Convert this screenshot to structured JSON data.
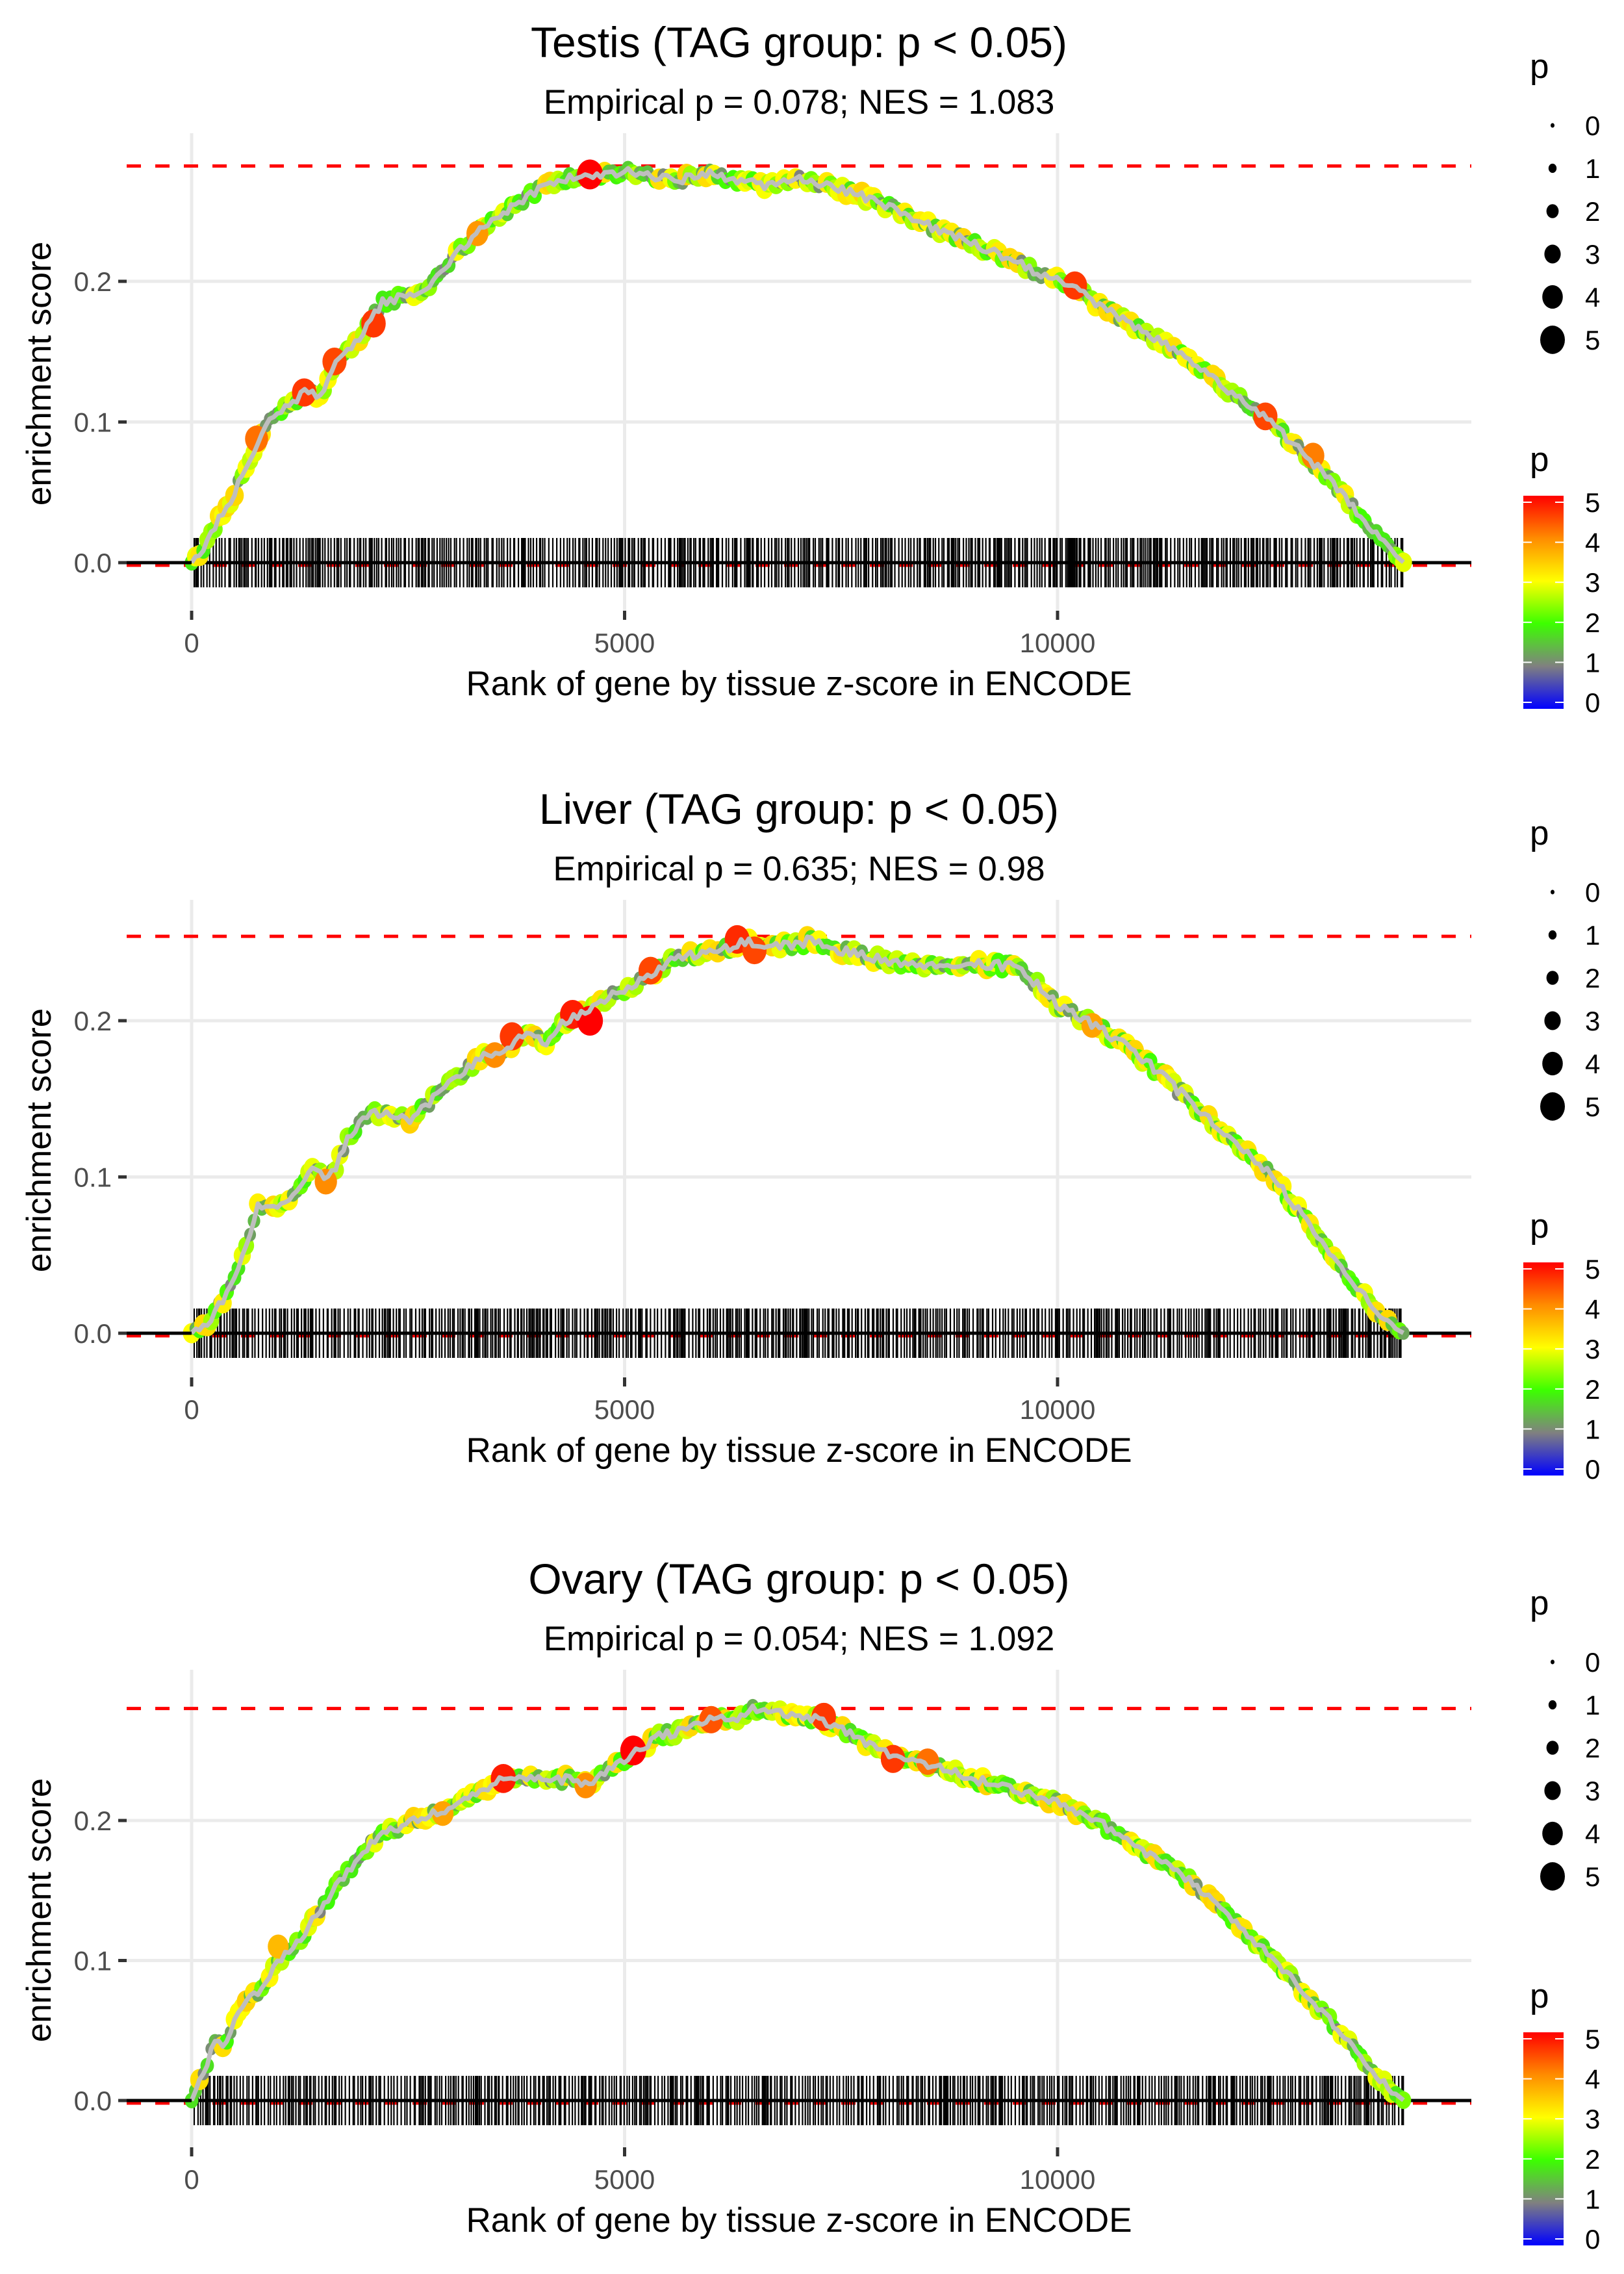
{
  "figure": {
    "panels_count": 3,
    "background": "#ffffff"
  },
  "chart_data": [
    {
      "type": "line",
      "panel": "testis",
      "title": "Testis (TAG group: p < 0.05)",
      "subtitle": "Empirical p = 0.078; NES = 1.083",
      "xlabel": "Rank of gene by tissue z-score in ENCODE",
      "ylabel": "enrichment score",
      "x_ticks": [
        0,
        5000,
        10000
      ],
      "x_tick_labels": [
        "0",
        "5000",
        "10000"
      ],
      "y_ticks": [
        0.0,
        0.1,
        0.2
      ],
      "y_tick_labels": [
        "0.0",
        "0.1",
        "0.2"
      ],
      "xlim": [
        -1500,
        14800
      ],
      "ylim": [
        -0.02,
        0.3
      ],
      "max_es": 0.282,
      "n_genes": 14000,
      "grid": true,
      "curve": [
        [
          0,
          0
        ],
        [
          150,
          0.01
        ],
        [
          300,
          0.03
        ],
        [
          500,
          0.05
        ],
        [
          750,
          0.085
        ],
        [
          900,
          0.1
        ],
        [
          1200,
          0.115
        ],
        [
          1300,
          0.122
        ],
        [
          1500,
          0.118
        ],
        [
          1650,
          0.14
        ],
        [
          2000,
          0.165
        ],
        [
          2200,
          0.185
        ],
        [
          2500,
          0.19
        ],
        [
          2700,
          0.195
        ],
        [
          3000,
          0.215
        ],
        [
          3300,
          0.235
        ],
        [
          3600,
          0.248
        ],
        [
          4000,
          0.265
        ],
        [
          4300,
          0.272
        ],
        [
          4600,
          0.276
        ],
        [
          5000,
          0.278
        ],
        [
          5300,
          0.275
        ],
        [
          5600,
          0.272
        ],
        [
          6000,
          0.276
        ],
        [
          6300,
          0.272
        ],
        [
          6600,
          0.268
        ],
        [
          7000,
          0.273
        ],
        [
          7500,
          0.265
        ],
        [
          8000,
          0.255
        ],
        [
          8500,
          0.24
        ],
        [
          9000,
          0.228
        ],
        [
          9500,
          0.214
        ],
        [
          10000,
          0.2
        ],
        [
          10200,
          0.195
        ],
        [
          10500,
          0.182
        ],
        [
          11000,
          0.165
        ],
        [
          11500,
          0.145
        ],
        [
          12000,
          0.12
        ],
        [
          12400,
          0.103
        ],
        [
          12800,
          0.08
        ],
        [
          13200,
          0.055
        ],
        [
          13600,
          0.025
        ],
        [
          13850,
          0.008
        ],
        [
          14000,
          0
        ]
      ],
      "highlight_points": [
        {
          "x": 4600,
          "es": 0.276,
          "p": 5.0
        },
        {
          "x": 10200,
          "es": 0.197,
          "p": 4.6
        },
        {
          "x": 12400,
          "es": 0.104,
          "p": 4.5
        },
        {
          "x": 12950,
          "es": 0.076,
          "p": 4.1
        },
        {
          "x": 1300,
          "es": 0.121,
          "p": 4.6
        },
        {
          "x": 1650,
          "es": 0.143,
          "p": 4.5
        },
        {
          "x": 2100,
          "es": 0.17,
          "p": 4.6
        },
        {
          "x": 750,
          "es": 0.088,
          "p": 4.2
        },
        {
          "x": 3300,
          "es": 0.234,
          "p": 3.9
        }
      ],
      "legend_size": {
        "title": "p",
        "values": [
          0,
          1,
          2,
          3,
          4,
          5
        ]
      },
      "legend_color": {
        "title": "p",
        "values": [
          5,
          4,
          3,
          2,
          1,
          0
        ],
        "colors": [
          "#ff0000",
          "#ff8c00",
          "#ffff00",
          "#3cff00",
          "#808080",
          "#0000ff"
        ]
      }
    },
    {
      "type": "line",
      "panel": "liver",
      "title": "Liver (TAG group: p < 0.05)",
      "subtitle": "Empirical p = 0.635; NES = 0.98",
      "xlabel": "Rank of gene by tissue z-score in ENCODE",
      "ylabel": "enrichment score",
      "x_ticks": [
        0,
        5000,
        10000
      ],
      "x_tick_labels": [
        "0",
        "5000",
        "10000"
      ],
      "y_ticks": [
        0.0,
        0.1,
        0.2
      ],
      "y_tick_labels": [
        "0.0",
        "0.1",
        "0.2"
      ],
      "xlim": [
        -1500,
        14800
      ],
      "ylim": [
        -0.015,
        0.27
      ],
      "max_es": 0.254,
      "n_genes": 14000,
      "grid": true,
      "curve": [
        [
          0,
          0
        ],
        [
          200,
          0.008
        ],
        [
          400,
          0.025
        ],
        [
          600,
          0.05
        ],
        [
          750,
          0.08
        ],
        [
          900,
          0.082
        ],
        [
          1000,
          0.08
        ],
        [
          1200,
          0.092
        ],
        [
          1400,
          0.105
        ],
        [
          1550,
          0.097
        ],
        [
          1700,
          0.11
        ],
        [
          1800,
          0.125
        ],
        [
          2000,
          0.14
        ],
        [
          2300,
          0.14
        ],
        [
          2500,
          0.135
        ],
        [
          2700,
          0.145
        ],
        [
          3000,
          0.162
        ],
        [
          3200,
          0.17
        ],
        [
          3400,
          0.18
        ],
        [
          3600,
          0.18
        ],
        [
          3800,
          0.19
        ],
        [
          4000,
          0.192
        ],
        [
          4100,
          0.183
        ],
        [
          4300,
          0.2
        ],
        [
          4500,
          0.205
        ],
        [
          4700,
          0.212
        ],
        [
          5000,
          0.22
        ],
        [
          5300,
          0.228
        ],
        [
          5500,
          0.238
        ],
        [
          5800,
          0.242
        ],
        [
          6100,
          0.245
        ],
        [
          6400,
          0.251
        ],
        [
          6600,
          0.246
        ],
        [
          6900,
          0.248
        ],
        [
          7200,
          0.252
        ],
        [
          7500,
          0.245
        ],
        [
          8000,
          0.238
        ],
        [
          8500,
          0.235
        ],
        [
          9000,
          0.236
        ],
        [
          9500,
          0.235
        ],
        [
          9800,
          0.222
        ],
        [
          10000,
          0.21
        ],
        [
          10500,
          0.195
        ],
        [
          11000,
          0.175
        ],
        [
          11500,
          0.15
        ],
        [
          12000,
          0.125
        ],
        [
          12500,
          0.1
        ],
        [
          12900,
          0.07
        ],
        [
          13300,
          0.04
        ],
        [
          13700,
          0.012
        ],
        [
          13900,
          0.003
        ],
        [
          14000,
          0
        ]
      ],
      "highlight_points": [
        {
          "x": 1550,
          "es": 0.097,
          "p": 4.0
        },
        {
          "x": 3500,
          "es": 0.178,
          "p": 4.0
        },
        {
          "x": 3700,
          "es": 0.19,
          "p": 4.6
        },
        {
          "x": 4400,
          "es": 0.204,
          "p": 4.8
        },
        {
          "x": 4600,
          "es": 0.2,
          "p": 5.0
        },
        {
          "x": 5300,
          "es": 0.232,
          "p": 4.5
        },
        {
          "x": 6300,
          "es": 0.252,
          "p": 4.7
        },
        {
          "x": 6500,
          "es": 0.245,
          "p": 4.5
        },
        {
          "x": 10400,
          "es": 0.197,
          "p": 3.8
        }
      ],
      "legend_size": {
        "title": "p",
        "values": [
          0,
          1,
          2,
          3,
          4,
          5
        ]
      },
      "legend_color": {
        "title": "p",
        "values": [
          5,
          4,
          3,
          2,
          1,
          0
        ],
        "colors": [
          "#ff0000",
          "#ff8c00",
          "#ffff00",
          "#3cff00",
          "#808080",
          "#0000ff"
        ]
      }
    },
    {
      "type": "line",
      "panel": "ovary",
      "title": "Ovary (TAG group: p < 0.05)",
      "subtitle": "Empirical p = 0.054; NES = 1.092",
      "xlabel": "Rank of gene by tissue z-score in ENCODE",
      "ylabel": "enrichment score",
      "x_ticks": [
        0,
        5000,
        10000
      ],
      "x_tick_labels": [
        "0",
        "5000",
        "10000"
      ],
      "y_ticks": [
        0.0,
        0.1,
        0.2
      ],
      "y_tick_labels": [
        "0.0",
        "0.1",
        "0.2"
      ],
      "xlim": [
        -1500,
        14800
      ],
      "ylim": [
        -0.02,
        0.3
      ],
      "max_es": 0.28,
      "n_genes": 14000,
      "grid": true,
      "curve": [
        [
          0,
          0
        ],
        [
          150,
          0.02
        ],
        [
          250,
          0.045
        ],
        [
          400,
          0.04
        ],
        [
          550,
          0.065
        ],
        [
          800,
          0.08
        ],
        [
          1000,
          0.1
        ],
        [
          1200,
          0.11
        ],
        [
          1400,
          0.13
        ],
        [
          1700,
          0.155
        ],
        [
          2000,
          0.18
        ],
        [
          2300,
          0.193
        ],
        [
          2600,
          0.2
        ],
        [
          3000,
          0.21
        ],
        [
          3300,
          0.22
        ],
        [
          3600,
          0.23
        ],
        [
          3900,
          0.232
        ],
        [
          4100,
          0.228
        ],
        [
          4400,
          0.23
        ],
        [
          4550,
          0.225
        ],
        [
          4800,
          0.235
        ],
        [
          5100,
          0.248
        ],
        [
          5400,
          0.26
        ],
        [
          5700,
          0.265
        ],
        [
          6000,
          0.272
        ],
        [
          6300,
          0.272
        ],
        [
          6500,
          0.28
        ],
        [
          6800,
          0.276
        ],
        [
          7100,
          0.275
        ],
        [
          7400,
          0.268
        ],
        [
          7800,
          0.255
        ],
        [
          8100,
          0.245
        ],
        [
          8500,
          0.24
        ],
        [
          9000,
          0.23
        ],
        [
          9500,
          0.222
        ],
        [
          10000,
          0.212
        ],
        [
          10500,
          0.198
        ],
        [
          11000,
          0.178
        ],
        [
          11500,
          0.158
        ],
        [
          12000,
          0.13
        ],
        [
          12500,
          0.1
        ],
        [
          12900,
          0.075
        ],
        [
          13300,
          0.045
        ],
        [
          13700,
          0.015
        ],
        [
          14000,
          0
        ]
      ],
      "highlight_points": [
        {
          "x": 3600,
          "es": 0.23,
          "p": 4.8
        },
        {
          "x": 4550,
          "es": 0.225,
          "p": 4.0
        },
        {
          "x": 5100,
          "es": 0.25,
          "p": 5.0
        },
        {
          "x": 6000,
          "es": 0.272,
          "p": 4.4
        },
        {
          "x": 7300,
          "es": 0.274,
          "p": 4.6
        },
        {
          "x": 8100,
          "es": 0.244,
          "p": 4.6
        },
        {
          "x": 8500,
          "es": 0.242,
          "p": 4.2
        },
        {
          "x": 2900,
          "es": 0.205,
          "p": 3.8
        },
        {
          "x": 1000,
          "es": 0.11,
          "p": 3.6
        }
      ],
      "legend_size": {
        "title": "p",
        "values": [
          0,
          1,
          2,
          3,
          4,
          5
        ]
      },
      "legend_color": {
        "title": "p",
        "values": [
          5,
          4,
          3,
          2,
          1,
          0
        ],
        "colors": [
          "#ff0000",
          "#ff8c00",
          "#ffff00",
          "#3cff00",
          "#808080",
          "#0000ff"
        ]
      }
    }
  ]
}
